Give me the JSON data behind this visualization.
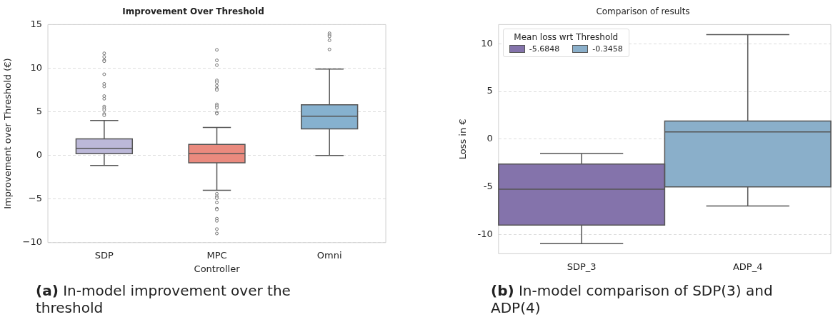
{
  "chart_data": [
    {
      "type": "box",
      "title": "Improvement Over Threshold",
      "xlabel": "Controller",
      "ylabel": "Improvement over Threshold (€)",
      "categories": [
        "SDP",
        "MPC",
        "Omni"
      ],
      "colors": [
        "#bcb8d8",
        "#ea8a7e",
        "#86b1cf"
      ],
      "boxes": [
        {
          "low": -1.15,
          "q1": 0.2,
          "median": 0.8,
          "q3": 1.9,
          "high": 4.0,
          "outliers": [
            11.7,
            11.3,
            10.9,
            10.8,
            9.3,
            8.2,
            7.9,
            6.8,
            6.5,
            5.6,
            5.4,
            5.2,
            4.75,
            4.6
          ]
        },
        {
          "low": -4.0,
          "q1": -0.85,
          "median": 0.2,
          "q3": 1.25,
          "high": 3.2,
          "outliers": [
            12.1,
            10.9,
            10.35,
            8.6,
            8.4,
            8.0,
            7.65,
            7.5,
            5.85,
            5.65,
            5.45,
            4.9,
            4.8,
            -4.4,
            -4.7,
            -4.9,
            -5.4,
            -6.1,
            -6.2,
            -7.25,
            -7.5,
            -8.45,
            -8.95
          ]
        },
        {
          "low": 0,
          "q1": 3.05,
          "median": 4.5,
          "q3": 5.8,
          "high": 9.9,
          "outliers": [
            14.0,
            13.8,
            13.65,
            13.2,
            12.15
          ]
        }
      ],
      "ylim": [
        -10,
        15
      ],
      "yticks": [
        {
          "value": -10,
          "label": "−10"
        },
        {
          "value": -5,
          "label": "−5"
        },
        0,
        5,
        10,
        15
      ],
      "grid": "y",
      "legend": false,
      "annotations": [
        "(a) In-model improvement over the threshold"
      ]
    },
    {
      "type": "box",
      "title": "Comparison of results",
      "ylabel": "Loss in €",
      "categories": [
        "SDP_3",
        "ADP_4"
      ],
      "legend_title": "Mean loss wrt Threshold",
      "legend": "top left",
      "series": [
        {
          "name": "-5.6848",
          "color": "#8473ab",
          "boxes": [
            {
              "low": -10.95,
              "q1": -9.0,
              "median": -5.25,
              "q3": -2.6,
              "high": -1.5
            },
            null
          ]
        },
        {
          "name": "-0.3458",
          "color": "#8aafca",
          "boxes": [
            null,
            {
              "low": -7.0,
              "q1": -5.0,
              "median": 0.75,
              "q3": 1.9,
              "high": 10.95
            }
          ]
        }
      ],
      "ylim": [
        -12,
        12
      ],
      "yticks": [
        -10,
        -5,
        0,
        5,
        10
      ],
      "grid": "y",
      "annotations": [
        "(b) In-model comparison of SDP(3) and ADP(4)"
      ]
    }
  ]
}
